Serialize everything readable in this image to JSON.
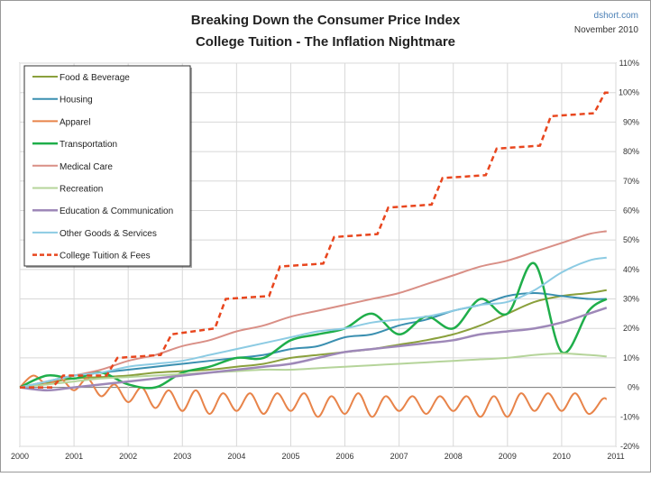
{
  "chart_data": {
    "type": "line",
    "title": "Breaking Down the Consumer Price Index",
    "subtitle": "College Tuition - The Inflation Nightmare",
    "source": "dshort.com",
    "date": "November 2010",
    "xlim": [
      2000,
      2011
    ],
    "ylim": [
      -20,
      110
    ],
    "x_ticks": [
      "2000",
      "2001",
      "2002",
      "2003",
      "2004",
      "2005",
      "2006",
      "2007",
      "2008",
      "2009",
      "2010",
      "2011"
    ],
    "y_ticks": [
      "110%",
      "100%",
      "90%",
      "80%",
      "70%",
      "60%",
      "50%",
      "40%",
      "30%",
      "20%",
      "10%",
      "0%",
      "-10%",
      "-20%"
    ],
    "grid": true,
    "legend_position": "top-left",
    "x": [
      2000,
      2000.5,
      2001,
      2001.5,
      2002,
      2002.5,
      2003,
      2003.5,
      2004,
      2004.5,
      2005,
      2005.5,
      2006,
      2006.5,
      2007,
      2007.5,
      2008,
      2008.5,
      2009,
      2009.5,
      2010,
      2010.5,
      2010.83
    ],
    "series": [
      {
        "name": "Food & Beverage",
        "color": "#8aa03c",
        "dash": "",
        "width": 2,
        "values": [
          0,
          1.5,
          3,
          3.5,
          4,
          5,
          5.5,
          6,
          7,
          8,
          10,
          11,
          12,
          13,
          14.5,
          16,
          18,
          21,
          25,
          29,
          31,
          32,
          33
        ]
      },
      {
        "name": "Housing",
        "color": "#3a8fb0",
        "dash": "",
        "width": 2,
        "values": [
          0,
          2,
          4,
          5,
          6,
          7,
          8,
          9,
          10,
          11,
          13,
          14,
          17,
          18,
          21,
          23,
          26,
          28,
          31,
          32,
          31,
          30,
          30
        ]
      },
      {
        "name": "Apparel",
        "color": "#e8844a",
        "dash": "",
        "width": 2,
        "x": [
          2000,
          2000.25,
          2000.5,
          2000.75,
          2001,
          2001.25,
          2001.5,
          2001.75,
          2002,
          2002.25,
          2002.5,
          2002.75,
          2003,
          2003.25,
          2003.5,
          2003.75,
          2004,
          2004.25,
          2004.5,
          2004.75,
          2005,
          2005.25,
          2005.5,
          2005.75,
          2006,
          2006.25,
          2006.5,
          2006.75,
          2007,
          2007.25,
          2007.5,
          2007.75,
          2008,
          2008.25,
          2008.5,
          2008.75,
          2009,
          2009.25,
          2009.5,
          2009.75,
          2010,
          2010.25,
          2010.5,
          2010.75,
          2010.83
        ],
        "values": [
          0,
          4,
          1,
          3,
          -1,
          3,
          -3,
          1,
          -5,
          0,
          -7,
          -1,
          -8,
          -1,
          -9,
          -2,
          -8,
          -2,
          -9,
          -2,
          -8,
          -2,
          -10,
          -3,
          -9,
          -2,
          -10,
          -3,
          -8,
          -3,
          -9,
          -3,
          -8,
          -3,
          -10,
          -3,
          -10,
          -2,
          -8,
          -2,
          -8,
          -2,
          -9,
          -4,
          -4
        ]
      },
      {
        "name": "Transportation",
        "color": "#1fae4a",
        "dash": "",
        "width": 2.5,
        "values": [
          0,
          4,
          3,
          5,
          1,
          0,
          5,
          7,
          10,
          10,
          16,
          18,
          20,
          25,
          18,
          24,
          20,
          30,
          25,
          42,
          12,
          26,
          30
        ]
      },
      {
        "name": "Medical Care",
        "color": "#d98f86",
        "dash": "",
        "width": 2,
        "values": [
          0,
          2,
          4,
          6,
          9,
          11,
          14,
          16,
          19,
          21,
          24,
          26,
          28,
          30,
          32,
          35,
          38,
          41,
          43,
          46,
          49,
          52,
          53
        ]
      },
      {
        "name": "Recreation",
        "color": "#b5d49a",
        "dash": "",
        "width": 2,
        "values": [
          0,
          1,
          2,
          3,
          3.5,
          4,
          4.5,
          5,
          5.5,
          6,
          6,
          6.5,
          7,
          7.5,
          8,
          8.5,
          9,
          9.5,
          10,
          11,
          11.5,
          11,
          10.5
        ]
      },
      {
        "name": "Education & Communication",
        "color": "#9e88b8",
        "dash": "",
        "width": 2.5,
        "values": [
          0,
          -1,
          0,
          1,
          2,
          3,
          4,
          5,
          6,
          7,
          8,
          10,
          12,
          13,
          14,
          15,
          16,
          18,
          19,
          20,
          22,
          25,
          27
        ]
      },
      {
        "name": "Other Goods & Services",
        "color": "#8ccbe3",
        "dash": "",
        "width": 2,
        "values": [
          0,
          2,
          4,
          5,
          7,
          8,
          9,
          11,
          13,
          15,
          17,
          19,
          20,
          22,
          23,
          24,
          26,
          28,
          29,
          33,
          39,
          43,
          44
        ]
      },
      {
        "name": "College Tuition & Fees",
        "color": "#e8461e",
        "dash": "6,4",
        "width": 2.5,
        "x": [
          2000,
          2000.6,
          2000.8,
          2001.6,
          2001.8,
          2002.6,
          2002.8,
          2003.6,
          2003.8,
          2004.6,
          2004.8,
          2005.6,
          2005.8,
          2006.6,
          2006.8,
          2007.6,
          2007.8,
          2008.6,
          2008.8,
          2009.6,
          2009.8,
          2010.6,
          2010.8,
          2010.9
        ],
        "values": [
          0,
          0,
          4,
          4,
          10,
          11,
          18,
          20,
          30,
          31,
          41,
          42,
          51,
          52,
          61,
          62,
          71,
          72,
          81,
          82,
          92,
          93,
          100,
          100
        ]
      }
    ]
  }
}
